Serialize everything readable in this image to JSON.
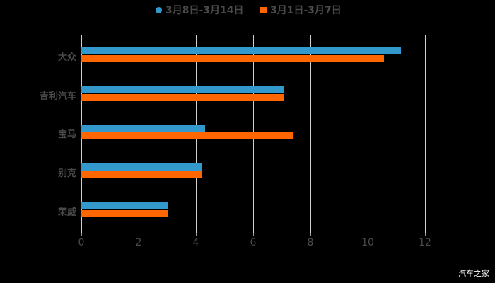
{
  "chart_data": {
    "type": "bar",
    "orientation": "horizontal",
    "title": "",
    "categories": [
      "大众",
      "吉利汽车",
      "宝马",
      "别克",
      "荣威"
    ],
    "series": [
      {
        "name": "3月8日-3月14日",
        "color": "#3399cc",
        "values": [
          11.16,
          7.09,
          4.32,
          4.2,
          3.04
        ]
      },
      {
        "name": "3月1日-3月7日",
        "color": "#ff6600",
        "values": [
          10.57,
          7.09,
          7.38,
          4.2,
          3.04
        ]
      }
    ],
    "xlabel": "",
    "ylabel": "",
    "xlim": [
      0,
      12
    ],
    "x_ticks": [
      "0",
      "2",
      "4",
      "6",
      "8",
      "10",
      "12"
    ],
    "grid": "vertical",
    "legend_position": "top"
  },
  "legend": {
    "item0": "3月8日-3月14日",
    "item1": "3月1日-3月7日"
  },
  "watermark": "汽车之家"
}
